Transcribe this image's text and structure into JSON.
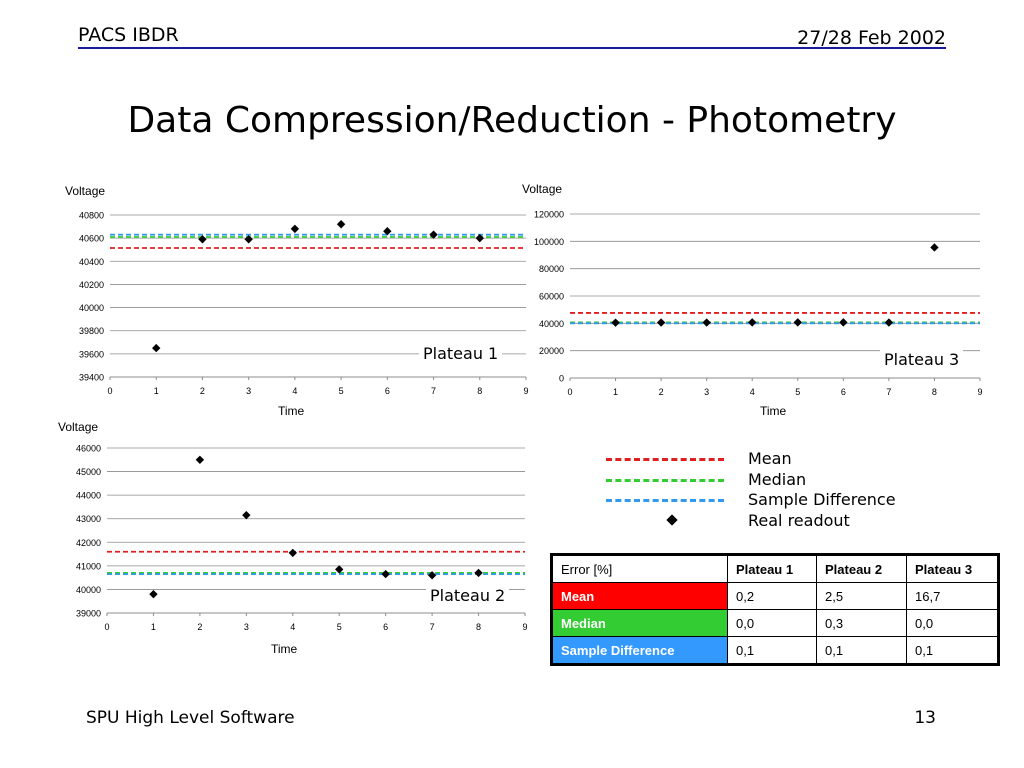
{
  "header": {
    "left": "PACS IBDR",
    "right": "27/28 Feb 2002"
  },
  "title": "Data Compression/Reduction - Photometry",
  "footer": {
    "left": "SPU High Level Software",
    "right": "13"
  },
  "colors": {
    "mean": "#e02020",
    "median": "#33cc33",
    "sample_difference": "#3399ee",
    "header_rule": "#1a1aa0"
  },
  "legend": {
    "items": [
      {
        "label": "Mean",
        "style": "dashed",
        "color": "#e02020"
      },
      {
        "label": "Median",
        "style": "dashed",
        "color": "#33cc33"
      },
      {
        "label": "Sample Difference",
        "style": "dashed",
        "color": "#3399ee"
      },
      {
        "label": "Real readout",
        "style": "diamond",
        "color": "#000000"
      }
    ]
  },
  "chart_data": [
    {
      "type": "scatter",
      "ylabel": "Voltage",
      "xlabel": "Time",
      "annotation": "Plateau 1",
      "xlim": [
        0,
        9
      ],
      "ylim": [
        39400,
        40800
      ],
      "yticks": [
        39400,
        39600,
        39800,
        40000,
        40200,
        40400,
        40600,
        40800
      ],
      "xticks": [
        0,
        1,
        2,
        3,
        4,
        5,
        6,
        7,
        8,
        9
      ],
      "grid": true,
      "series": [
        {
          "name": "Real readout",
          "x": [
            1,
            2,
            3,
            4,
            5,
            6,
            7,
            8
          ],
          "y": [
            39650,
            40590,
            40590,
            40680,
            40720,
            40660,
            40630,
            40600
          ]
        }
      ],
      "hlines": {
        "Mean": 40515,
        "Median": 40610,
        "Sample Difference": 40630
      }
    },
    {
      "type": "scatter",
      "ylabel": "Voltage",
      "xlabel": "Time",
      "annotation": "Plateau 3",
      "xlim": [
        0,
        9
      ],
      "ylim": [
        0,
        120000
      ],
      "yticks": [
        0,
        20000,
        40000,
        60000,
        80000,
        100000,
        120000
      ],
      "xticks": [
        0,
        1,
        2,
        3,
        4,
        5,
        6,
        7,
        8,
        9
      ],
      "grid": true,
      "series": [
        {
          "name": "Real readout",
          "x": [
            1,
            2,
            3,
            4,
            5,
            6,
            7,
            8
          ],
          "y": [
            40500,
            40600,
            40600,
            40700,
            40700,
            40700,
            40600,
            95500
          ]
        }
      ],
      "hlines": {
        "Mean": 47600,
        "Median": 40650,
        "Sample Difference": 40000
      }
    },
    {
      "type": "scatter",
      "ylabel": "Voltage",
      "xlabel": "Time",
      "annotation": "Plateau 2",
      "xlim": [
        0,
        9
      ],
      "ylim": [
        39000,
        46000
      ],
      "yticks": [
        39000,
        40000,
        41000,
        42000,
        43000,
        44000,
        45000,
        46000
      ],
      "xticks": [
        0,
        1,
        2,
        3,
        4,
        5,
        6,
        7,
        8,
        9
      ],
      "grid": true,
      "series": [
        {
          "name": "Real readout",
          "x": [
            1,
            2,
            3,
            4,
            5,
            6,
            7,
            8
          ],
          "y": [
            39800,
            45500,
            43150,
            41550,
            40850,
            40650,
            40600,
            40700
          ]
        }
      ],
      "hlines": {
        "Mean": 41600,
        "Median": 40700,
        "Sample Difference": 40650
      }
    }
  ],
  "table": {
    "headers": [
      "Error [%]",
      "Plateau 1",
      "Plateau 2",
      "Plateau 3"
    ],
    "rows": [
      {
        "label": "Mean",
        "color": "#ff0000",
        "values": [
          "0,2",
          "2,5",
          "16,7"
        ]
      },
      {
        "label": "Median",
        "color": "#33cc33",
        "values": [
          "0,0",
          "0,3",
          "0,0"
        ]
      },
      {
        "label": "Sample Difference",
        "color": "#3399ff",
        "values": [
          "0,1",
          "0,1",
          "0,1"
        ]
      }
    ]
  }
}
